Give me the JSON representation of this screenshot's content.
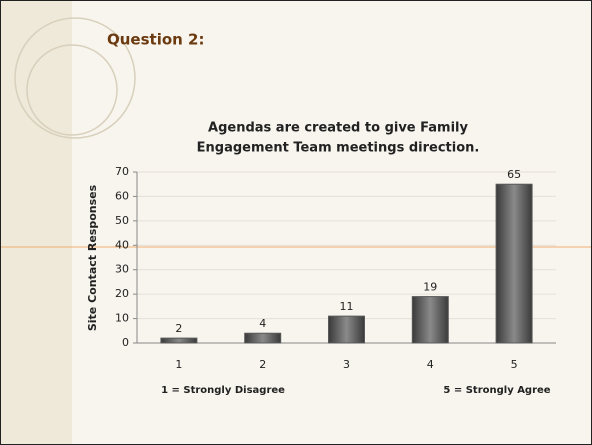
{
  "slide_title": "Question 2:",
  "chart_data": {
    "type": "bar",
    "title": [
      "Agendas are created to give Family",
      "Engagement Team meetings direction."
    ],
    "ylabel": "Site Contact Responses",
    "categories": [
      "1",
      "2",
      "3",
      "4",
      "5"
    ],
    "values": [
      2,
      4,
      11,
      19,
      65
    ],
    "color": "#5a5a5a",
    "ylim": [
      0,
      70
    ],
    "yticks": [
      0,
      10,
      20,
      30,
      40,
      50,
      60,
      70
    ],
    "grid": true,
    "annotations": [
      "1 = Strongly Disagree",
      "5 = Strongly Agree"
    ]
  }
}
